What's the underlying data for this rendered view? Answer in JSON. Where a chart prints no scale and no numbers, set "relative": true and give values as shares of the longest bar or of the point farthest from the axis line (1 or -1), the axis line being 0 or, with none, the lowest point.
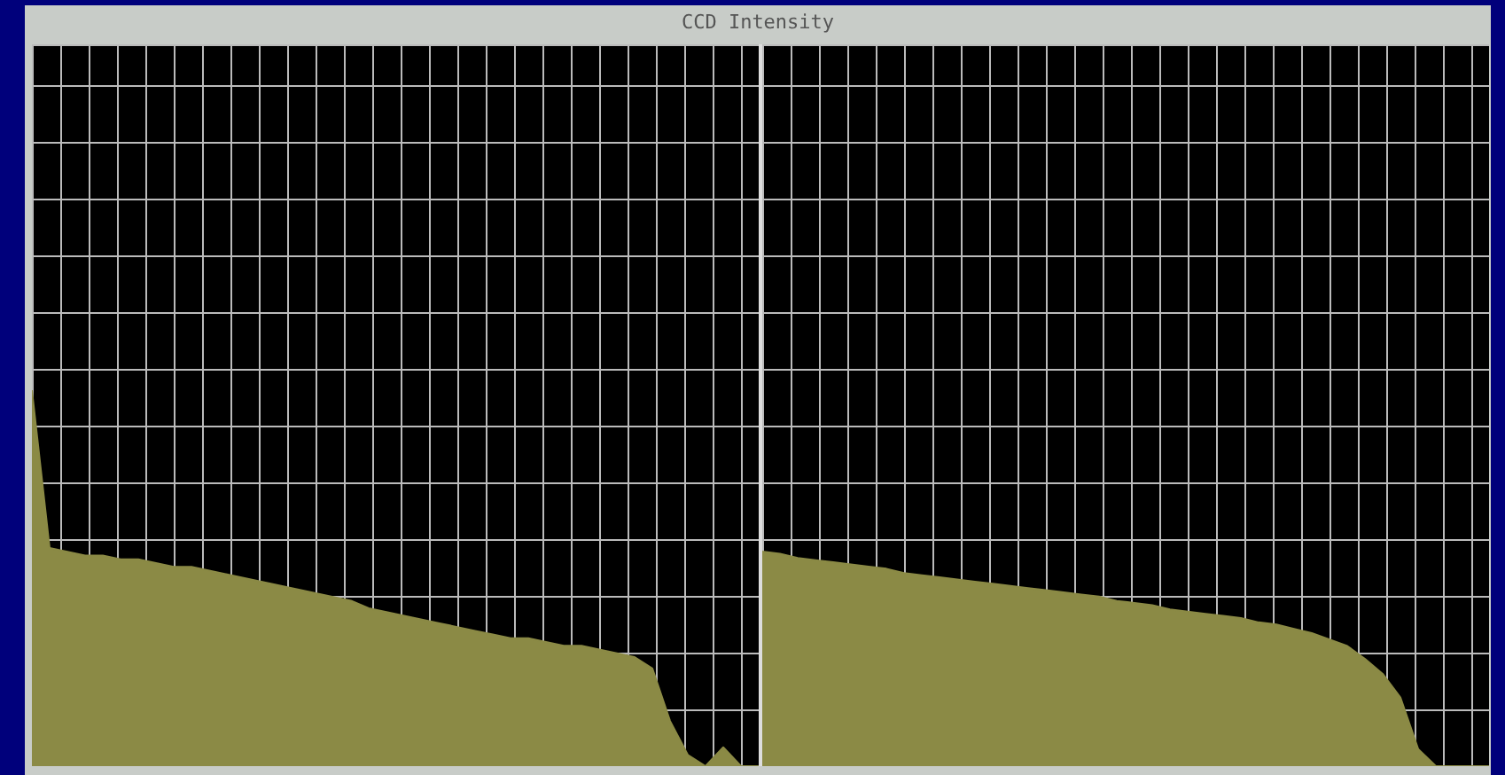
{
  "chart_data": [
    {
      "type": "area",
      "title": "CCD Intensity",
      "relative": true,
      "grid": true,
      "color": "#8b8a45",
      "categories": [
        null,
        null,
        null,
        null,
        null,
        null,
        null,
        null,
        null,
        null,
        null,
        null,
        null,
        null,
        null,
        null,
        null,
        null,
        null,
        null,
        null,
        null,
        null,
        null,
        null,
        null,
        null,
        null,
        null,
        null,
        null,
        null,
        null,
        null,
        null,
        null,
        null,
        null,
        null,
        null,
        null,
        null
      ],
      "values": [
        1.0,
        0.58,
        0.57,
        0.56,
        0.56,
        0.55,
        0.55,
        0.54,
        0.53,
        0.53,
        0.52,
        0.51,
        0.5,
        0.49,
        0.48,
        0.47,
        0.46,
        0.45,
        0.44,
        0.42,
        0.41,
        0.4,
        0.39,
        0.38,
        0.37,
        0.36,
        0.35,
        0.34,
        0.34,
        0.33,
        0.32,
        0.32,
        0.31,
        0.3,
        0.29,
        0.26,
        0.12,
        0.03,
        0.0,
        0.05,
        0.0,
        0.0
      ]
    },
    {
      "type": "area",
      "relative": true,
      "grid": true,
      "color": "#8b8a45",
      "categories": [
        null,
        null,
        null,
        null,
        null,
        null,
        null,
        null,
        null,
        null,
        null,
        null,
        null,
        null,
        null,
        null,
        null,
        null,
        null,
        null,
        null,
        null,
        null,
        null,
        null,
        null,
        null,
        null,
        null,
        null,
        null,
        null,
        null,
        null,
        null,
        null,
        null,
        null,
        null,
        null,
        null,
        null
      ],
      "values": [
        1.0,
        0.99,
        0.97,
        0.96,
        0.95,
        0.94,
        0.93,
        0.92,
        0.9,
        0.89,
        0.88,
        0.87,
        0.86,
        0.85,
        0.84,
        0.83,
        0.82,
        0.81,
        0.8,
        0.79,
        0.77,
        0.76,
        0.75,
        0.73,
        0.72,
        0.71,
        0.7,
        0.69,
        0.67,
        0.66,
        0.64,
        0.62,
        0.59,
        0.56,
        0.5,
        0.43,
        0.32,
        0.08,
        0.0,
        0.0,
        0.0,
        0.0
      ]
    }
  ]
}
